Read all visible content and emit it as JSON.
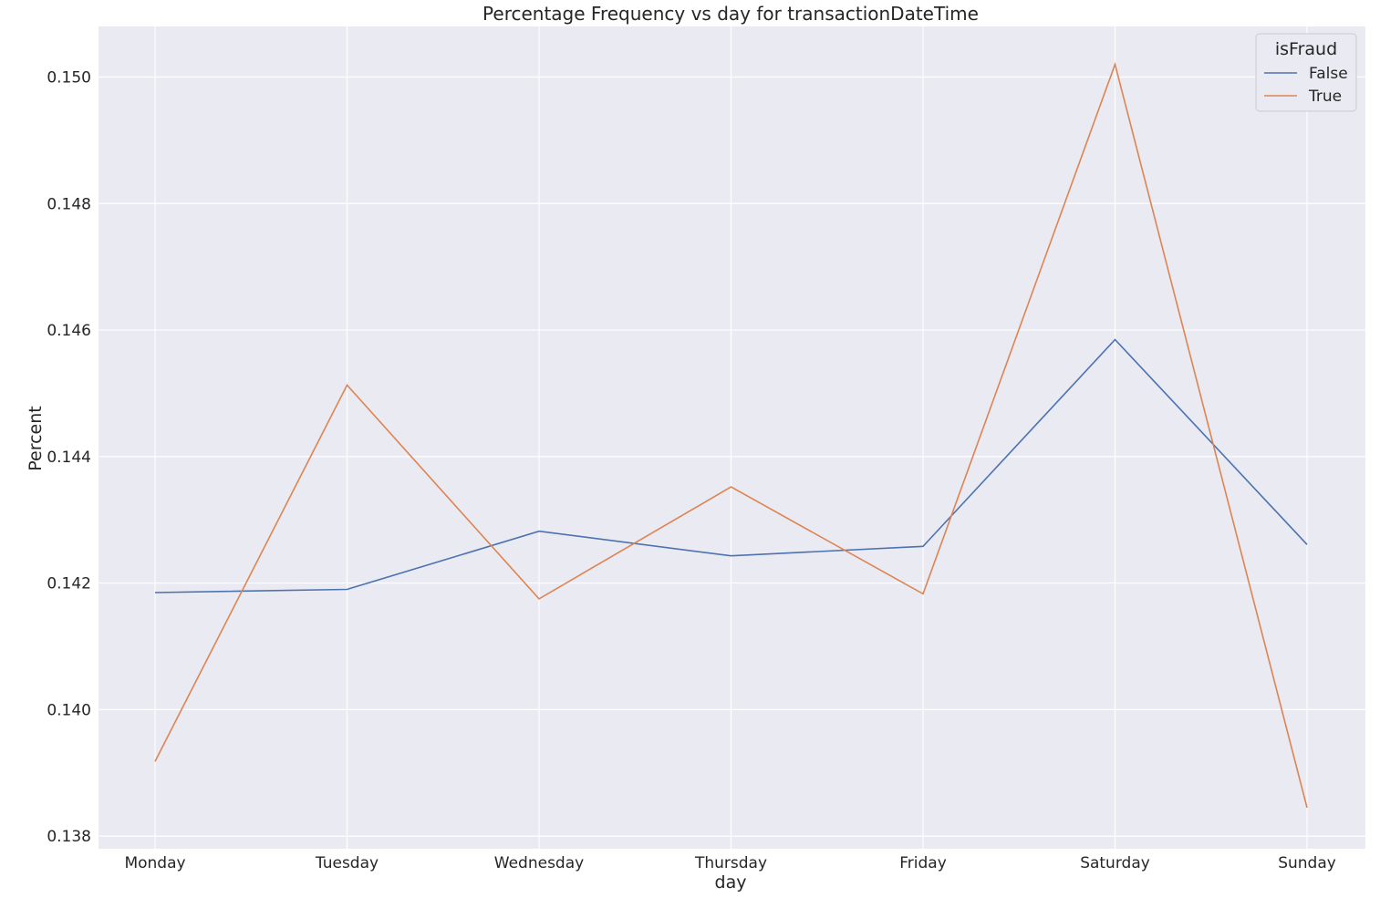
{
  "chart_data": {
    "type": "line",
    "title": "Percentage Frequency vs day for transactionDateTime",
    "xlabel": "day",
    "ylabel": "Percent",
    "categories": [
      "Monday",
      "Tuesday",
      "Wednesday",
      "Thursday",
      "Friday",
      "Saturday",
      "Sunday"
    ],
    "yticks": [
      "0.138",
      "0.140",
      "0.142",
      "0.144",
      "0.146",
      "0.148",
      "0.150"
    ],
    "ylim": [
      0.1378,
      0.1508
    ],
    "grid": true,
    "background_color": "#eaeaf2",
    "grid_color": "#ffffff",
    "legend": {
      "title": "isFraud",
      "placement": "top-right"
    },
    "series": [
      {
        "name": "False",
        "color": "#4c72b0",
        "values": [
          0.14185,
          0.1419,
          0.14282,
          0.14243,
          0.14258,
          0.14585,
          0.14261
        ]
      },
      {
        "name": "True",
        "color": "#dd8452",
        "values": [
          0.13918,
          0.14513,
          0.14175,
          0.14352,
          0.14183,
          0.1502,
          0.13845
        ]
      }
    ]
  }
}
